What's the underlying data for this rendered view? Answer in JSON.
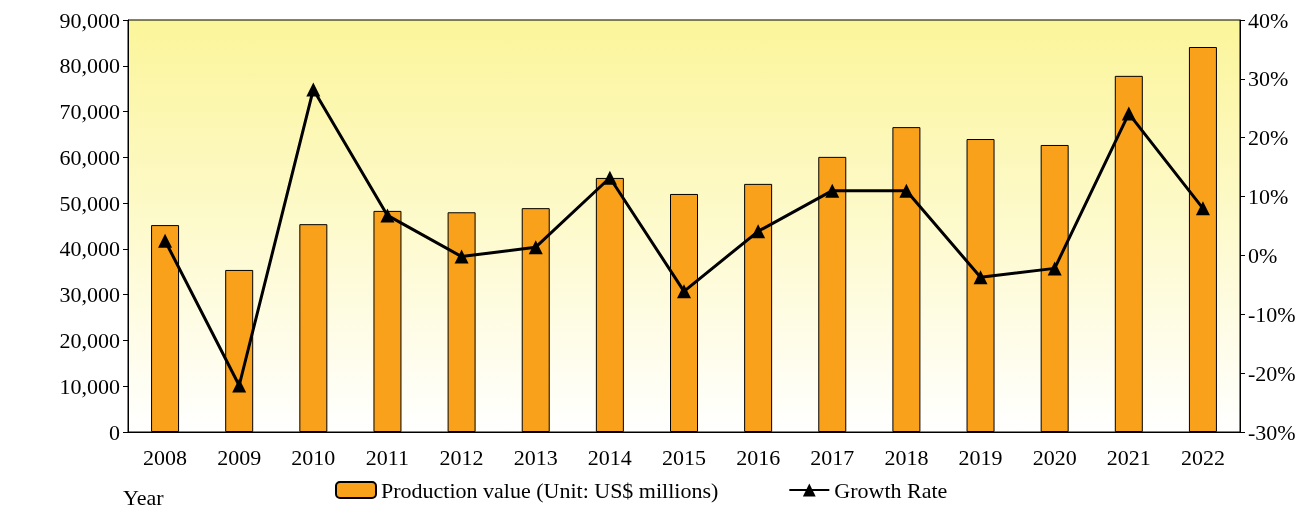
{
  "chart_data": {
    "type": "bar",
    "xlabel": "Year",
    "categories": [
      "2008",
      "2009",
      "2010",
      "2011",
      "2012",
      "2013",
      "2014",
      "2015",
      "2016",
      "2017",
      "2018",
      "2019",
      "2020",
      "2021",
      "2022"
    ],
    "series": [
      {
        "name": "Production value (Unit: US$ millions)",
        "color": "#f9a11b",
        "values": [
          45200,
          35400,
          45400,
          48300,
          48000,
          48900,
          55500,
          52000,
          54200,
          60100,
          66600,
          64000,
          62700,
          77800,
          84100
        ]
      },
      {
        "name": "Growth Rate",
        "type": "line",
        "axis": "y2",
        "color": "#000000",
        "marker": "triangle",
        "values": [
          2.5,
          -22.1,
          28.2,
          6.8,
          -0.2,
          1.4,
          13.2,
          -6.1,
          4.1,
          11.0,
          11.0,
          -3.7,
          -2.2,
          24.1,
          8.0
        ]
      }
    ],
    "ylim": [
      0,
      90000
    ],
    "yticks": [
      {
        "value": 0,
        "label": "0"
      },
      {
        "value": 10000,
        "label": "10,000"
      },
      {
        "value": 20000,
        "label": "20,000"
      },
      {
        "value": 30000,
        "label": "30,000"
      },
      {
        "value": 40000,
        "label": "40,000"
      },
      {
        "value": 50000,
        "label": "50,000"
      },
      {
        "value": 60000,
        "label": "60,000"
      },
      {
        "value": 70000,
        "label": "70,000"
      },
      {
        "value": 80000,
        "label": "80,000"
      },
      {
        "value": 90000,
        "label": "90,000"
      }
    ],
    "y2lim": [
      -30,
      40
    ],
    "y2ticks": [
      {
        "value": -30,
        "label": "-30%"
      },
      {
        "value": -20,
        "label": "-20%"
      },
      {
        "value": -10,
        "label": "-10%"
      },
      {
        "value": 0,
        "label": "0%"
      },
      {
        "value": 10,
        "label": "10%"
      },
      {
        "value": 20,
        "label": "20%"
      },
      {
        "value": 30,
        "label": "30%"
      },
      {
        "value": 40,
        "label": "40%"
      }
    ],
    "grid": false,
    "legend": "bottom"
  }
}
